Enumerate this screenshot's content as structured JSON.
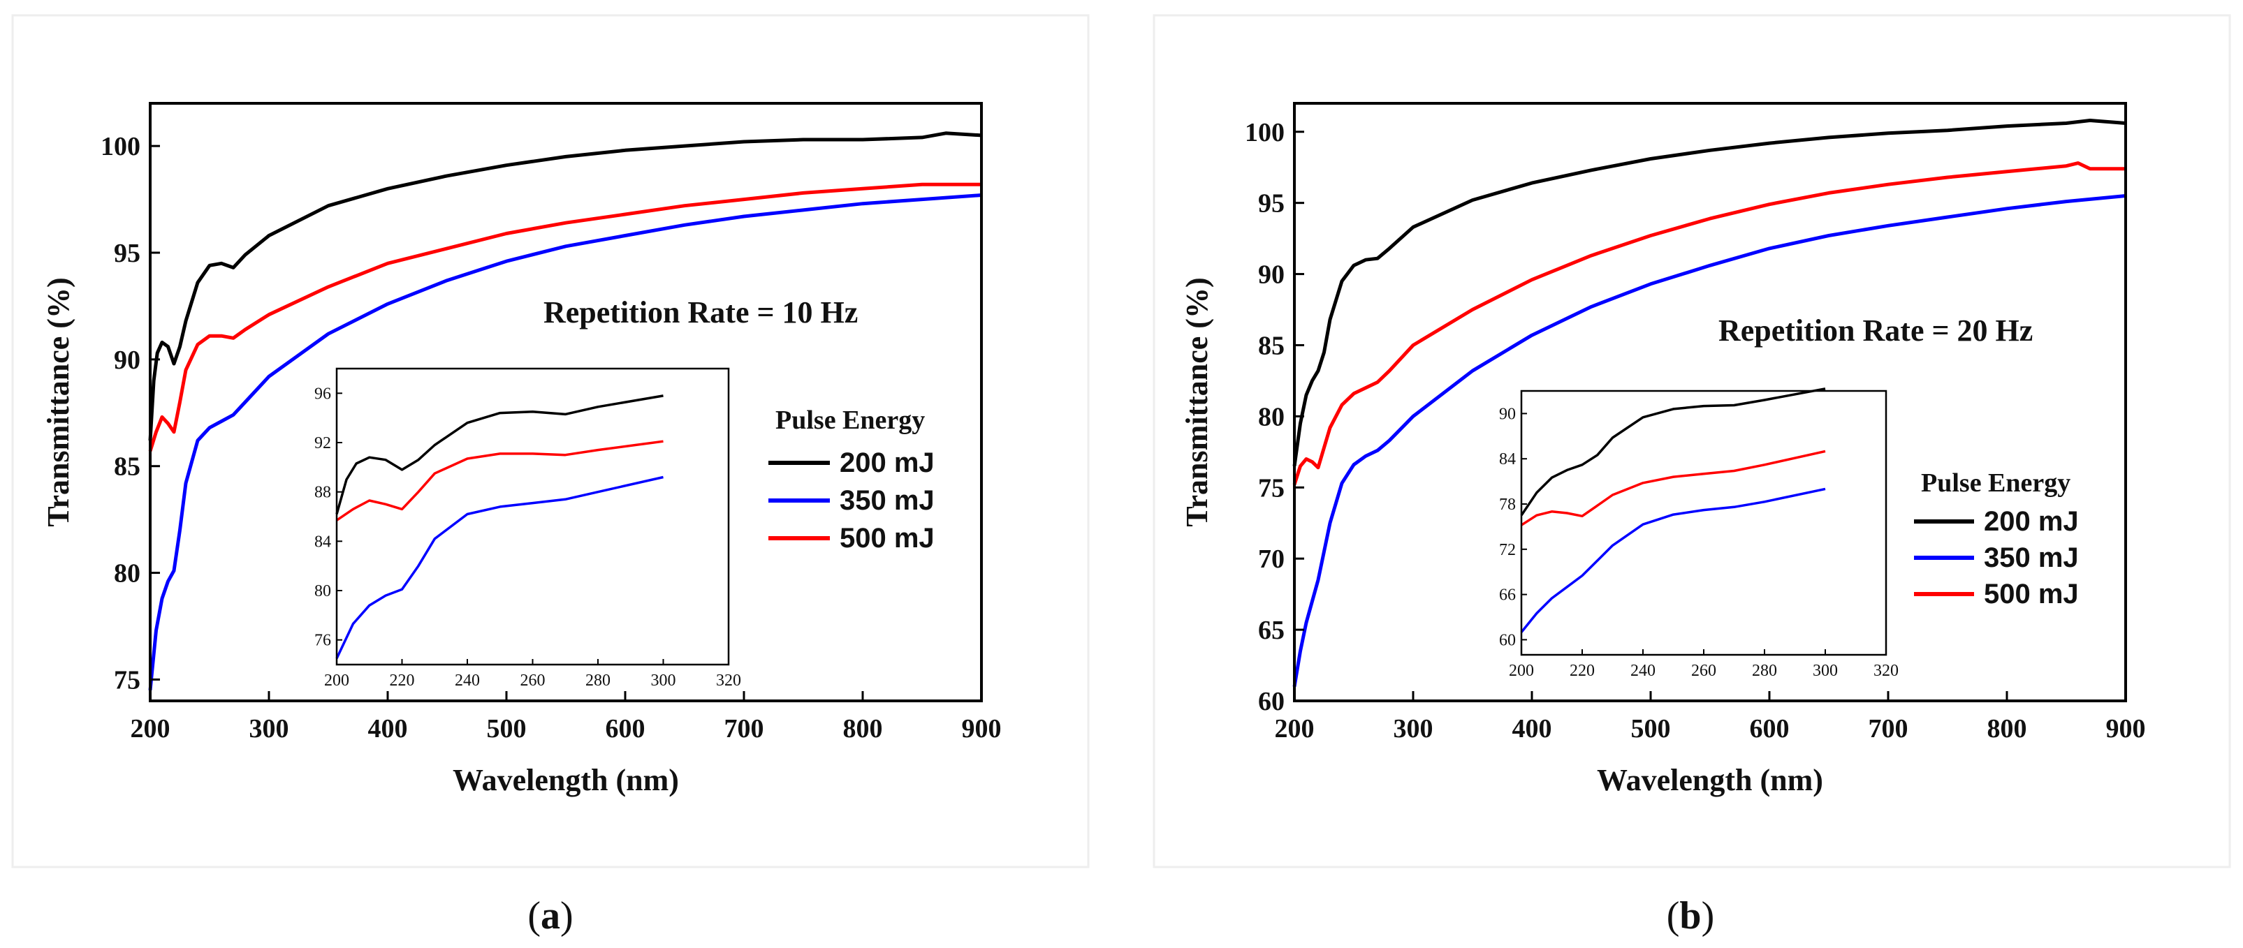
{
  "figure": {
    "panels": [
      {
        "caption_open": "(",
        "caption_letter": "a",
        "caption_close": ")"
      },
      {
        "caption_open": "(",
        "caption_letter": "b",
        "caption_close": ")"
      }
    ]
  },
  "chart_data": [
    {
      "type": "line",
      "panel": "a",
      "xlabel": "Wavelength (nm)",
      "ylabel": "Transmittance (%)",
      "xlim": [
        200,
        900
      ],
      "ylim": [
        74,
        102
      ],
      "xticks": [
        200,
        300,
        400,
        500,
        600,
        700,
        800,
        900
      ],
      "yticks": [
        75,
        80,
        85,
        90,
        95,
        100
      ],
      "annotation": "Repetition Rate = 10 Hz",
      "legend_title": "Pulse Energy",
      "legend_position": "lower-right",
      "series": [
        {
          "name": "200 mJ",
          "color": "#000000",
          "x": [
            200,
            203,
            206,
            210,
            215,
            220,
            225,
            230,
            240,
            250,
            260,
            270,
            280,
            300,
            350,
            400,
            450,
            500,
            550,
            600,
            650,
            700,
            750,
            800,
            850,
            870,
            900
          ],
          "y": [
            86.2,
            89.0,
            90.3,
            90.8,
            90.6,
            89.8,
            90.6,
            91.8,
            93.6,
            94.4,
            94.5,
            94.3,
            94.9,
            95.8,
            97.2,
            98.0,
            98.6,
            99.1,
            99.5,
            99.8,
            100.0,
            100.2,
            100.3,
            100.3,
            100.4,
            100.6,
            100.5
          ]
        },
        {
          "name": "350 mJ",
          "color": "#0000ff",
          "x": [
            200,
            205,
            210,
            215,
            220,
            225,
            230,
            240,
            250,
            260,
            270,
            280,
            300,
            350,
            400,
            450,
            500,
            550,
            600,
            650,
            700,
            750,
            800,
            850,
            900
          ],
          "y": [
            74.5,
            77.3,
            78.8,
            79.6,
            80.1,
            82.0,
            84.2,
            86.2,
            86.8,
            87.1,
            87.4,
            88.0,
            89.2,
            91.2,
            92.6,
            93.7,
            94.6,
            95.3,
            95.8,
            96.3,
            96.7,
            97.0,
            97.3,
            97.5,
            97.7
          ]
        },
        {
          "name": "500 mJ",
          "color": "#ff0000",
          "x": [
            200,
            205,
            210,
            215,
            220,
            225,
            230,
            240,
            250,
            260,
            270,
            280,
            300,
            350,
            400,
            450,
            500,
            550,
            600,
            650,
            700,
            750,
            800,
            850,
            900
          ],
          "y": [
            85.7,
            86.6,
            87.3,
            87.0,
            86.6,
            88.0,
            89.5,
            90.7,
            91.1,
            91.1,
            91.0,
            91.4,
            92.1,
            93.4,
            94.5,
            95.2,
            95.9,
            96.4,
            96.8,
            97.2,
            97.5,
            97.8,
            98.0,
            98.2,
            98.2
          ]
        }
      ],
      "inset": {
        "xlim": [
          200,
          320
        ],
        "ylim": [
          74,
          98
        ],
        "xticks": [
          200,
          220,
          240,
          260,
          280,
          300,
          320
        ],
        "yticks": [
          76,
          80,
          84,
          88,
          92,
          96
        ]
      }
    },
    {
      "type": "line",
      "panel": "b",
      "xlabel": "Wavelength (nm)",
      "ylabel": "Transmittance (%)",
      "xlim": [
        200,
        900
      ],
      "ylim": [
        60,
        102
      ],
      "xticks": [
        200,
        300,
        400,
        500,
        600,
        700,
        800,
        900
      ],
      "yticks": [
        60,
        65,
        70,
        75,
        80,
        85,
        90,
        95,
        100
      ],
      "annotation": "Repetition Rate = 20 Hz",
      "legend_title": "Pulse Energy",
      "legend_position": "lower-right",
      "series": [
        {
          "name": "200 mJ",
          "color": "#000000",
          "x": [
            200,
            205,
            210,
            215,
            220,
            225,
            230,
            240,
            250,
            260,
            270,
            280,
            300,
            350,
            400,
            450,
            500,
            550,
            600,
            650,
            700,
            750,
            800,
            850,
            870,
            900
          ],
          "y": [
            76.5,
            79.5,
            81.5,
            82.5,
            83.2,
            84.5,
            86.8,
            89.5,
            90.6,
            91.0,
            91.1,
            91.8,
            93.3,
            95.2,
            96.4,
            97.3,
            98.1,
            98.7,
            99.2,
            99.6,
            99.9,
            100.1,
            100.4,
            100.6,
            100.8,
            100.6
          ]
        },
        {
          "name": "350 mJ",
          "color": "#0000ff",
          "x": [
            200,
            205,
            210,
            215,
            220,
            225,
            230,
            240,
            250,
            260,
            270,
            280,
            300,
            350,
            400,
            450,
            500,
            550,
            600,
            650,
            700,
            750,
            800,
            850,
            900
          ],
          "y": [
            61.0,
            63.5,
            65.5,
            67.0,
            68.5,
            70.5,
            72.5,
            75.3,
            76.6,
            77.2,
            77.6,
            78.3,
            80.0,
            83.2,
            85.7,
            87.7,
            89.3,
            90.6,
            91.8,
            92.7,
            93.4,
            94.0,
            94.6,
            95.1,
            95.5
          ]
        },
        {
          "name": "500 mJ",
          "color": "#ff0000",
          "x": [
            200,
            205,
            210,
            215,
            220,
            225,
            230,
            240,
            250,
            260,
            270,
            280,
            300,
            350,
            400,
            450,
            500,
            550,
            600,
            650,
            700,
            750,
            800,
            850,
            860,
            870,
            900
          ],
          "y": [
            75.2,
            76.5,
            77.0,
            76.8,
            76.4,
            77.8,
            79.2,
            80.8,
            81.6,
            82.0,
            82.4,
            83.2,
            85.0,
            87.5,
            89.6,
            91.3,
            92.7,
            93.9,
            94.9,
            95.7,
            96.3,
            96.8,
            97.2,
            97.6,
            97.8,
            97.4,
            97.4
          ]
        }
      ],
      "inset": {
        "xlim": [
          200,
          320
        ],
        "ylim": [
          58,
          93
        ],
        "xticks": [
          200,
          220,
          240,
          260,
          280,
          300,
          320
        ],
        "yticks": [
          60,
          66,
          72,
          78,
          84,
          90
        ]
      }
    }
  ]
}
